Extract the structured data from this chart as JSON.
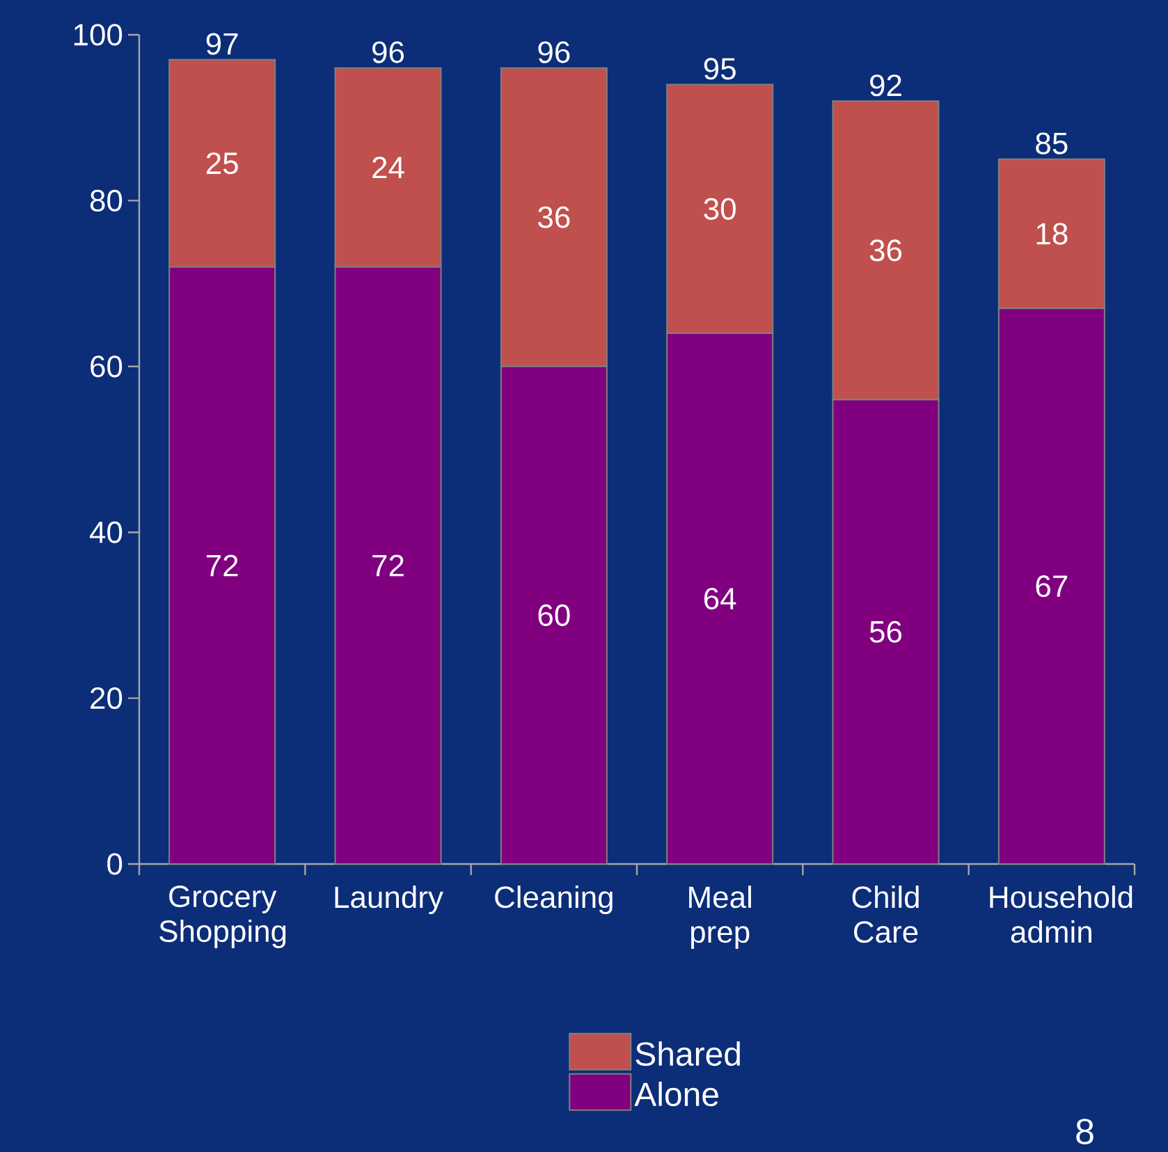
{
  "chart_data": {
    "type": "bar",
    "stacked": true,
    "categories": [
      "Grocery Shopping",
      "Laundry",
      "Cleaning",
      "Meal prep",
      "Child Care",
      "Household admin"
    ],
    "series": [
      {
        "name": "Alone",
        "color": "#800080",
        "values": [
          72,
          72,
          60,
          64,
          56,
          67
        ]
      },
      {
        "name": "Shared",
        "color": "#c0504d",
        "values": [
          25,
          24,
          36,
          30,
          36,
          18
        ]
      }
    ],
    "totals": [
      "97",
      "96",
      "96",
      "95",
      "92",
      "85"
    ],
    "data_labels": true,
    "ylim": [
      0,
      100
    ],
    "yticks": [
      0,
      20,
      40,
      60,
      80,
      100
    ],
    "legend": "bottom",
    "annotations": [
      "8"
    ]
  }
}
